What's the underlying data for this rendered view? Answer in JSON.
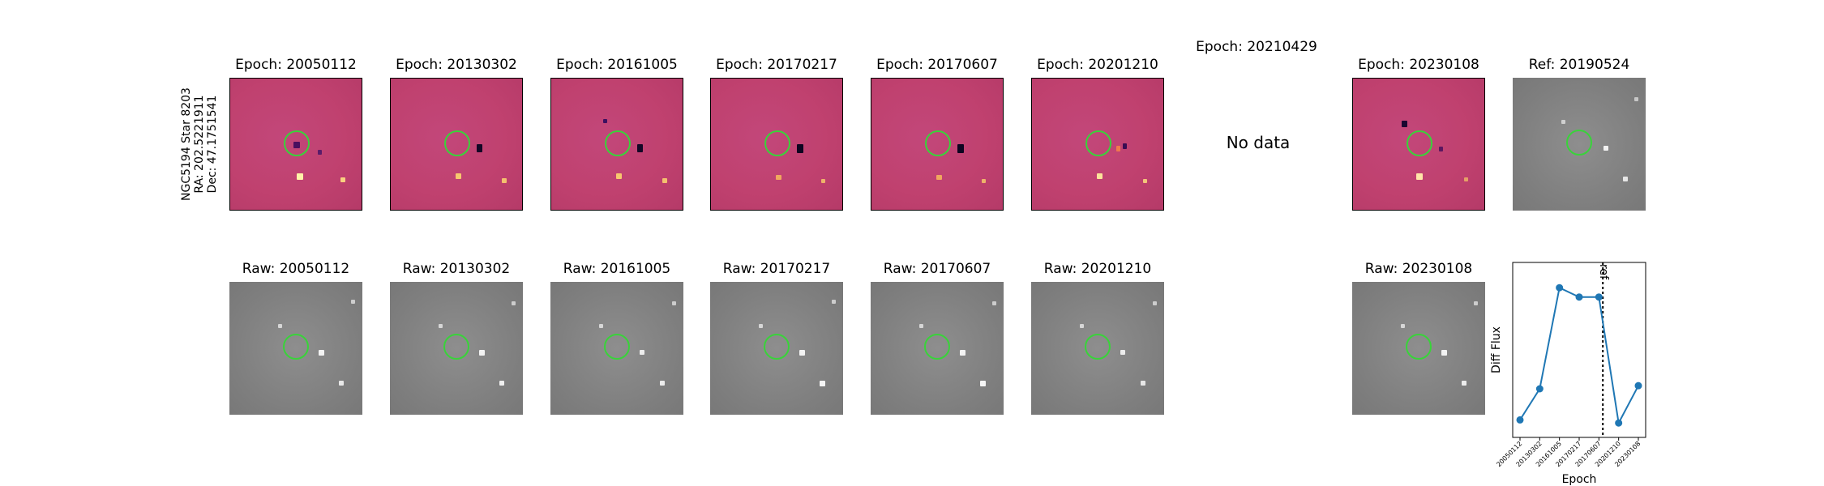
{
  "star": {
    "line1": "NGC5194 Star 8203",
    "line2": "RA: 202.5221911",
    "line3": "Dec: 47.1751541"
  },
  "diff_titles": [
    "Epoch: 20050112",
    "Epoch: 20130302",
    "Epoch: 20161005",
    "Epoch: 20170217",
    "Epoch: 20170607",
    "Epoch: 20201210",
    "Epoch: 20210429",
    "Epoch: 20230108"
  ],
  "ref_title": "Ref: 20190524",
  "no_data_text": "No data",
  "raw_titles": [
    "Raw: 20050112",
    "Raw: 20130302",
    "Raw: 20161005",
    "Raw: 20170217",
    "Raw: 20170607",
    "Raw: 20201210",
    "Raw: 20230108"
  ],
  "colors": {
    "diff_background": "#c0416f",
    "ring": "#39d33a",
    "series": "#1f77b4"
  },
  "chart_data": {
    "type": "line",
    "xlabel": "Epoch",
    "ylabel": "Diff Flux",
    "categories": [
      "20050112",
      "20130302",
      "20161005",
      "20170217",
      "20170607",
      "20201210",
      "20230108"
    ],
    "values": [
      0.05,
      0.25,
      0.9,
      0.84,
      0.84,
      0.03,
      0.27
    ],
    "ref_marker": {
      "label": "ref",
      "position": 5.2
    },
    "y_ticks": "none"
  }
}
